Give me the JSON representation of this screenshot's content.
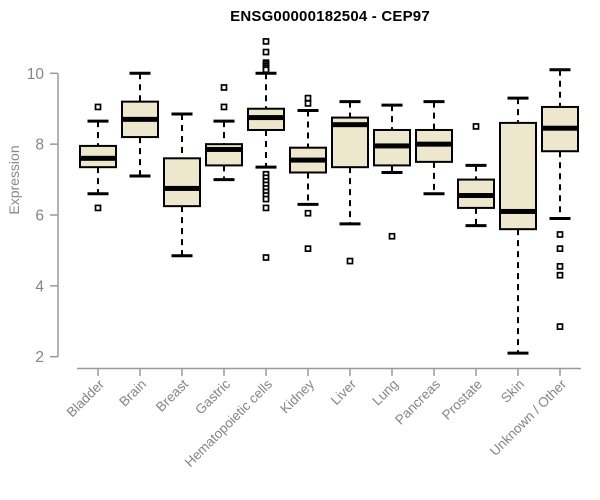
{
  "chart_data": {
    "type": "boxplot",
    "title": "ENSG00000182504 - CEP97",
    "ylabel": "Expression",
    "ylim": [
      2,
      10
    ],
    "yticks": [
      2,
      4,
      6,
      8,
      10
    ],
    "grid": false,
    "legend": "none",
    "categories": [
      "Bladder",
      "Brain",
      "Breast",
      "Gastric",
      "Hematopoietic cells",
      "Kidney",
      "Liver",
      "Lung",
      "Pancreas",
      "Prostate",
      "Skin",
      "Unknown / Other"
    ],
    "series": [
      {
        "category": "Bladder",
        "low": 6.6,
        "q1": 7.35,
        "median": 7.6,
        "q3": 7.95,
        "high": 8.65,
        "outliers": [
          9.05,
          6.2
        ]
      },
      {
        "category": "Brain",
        "low": 7.1,
        "q1": 8.2,
        "median": 8.7,
        "q3": 9.2,
        "high": 10.0,
        "outliers": []
      },
      {
        "category": "Breast",
        "low": 4.85,
        "q1": 6.25,
        "median": 6.75,
        "q3": 7.6,
        "high": 8.85,
        "outliers": []
      },
      {
        "category": "Gastric",
        "low": 7.0,
        "q1": 7.4,
        "median": 7.85,
        "q3": 8.0,
        "high": 8.65,
        "outliers": [
          9.6,
          9.05
        ]
      },
      {
        "category": "Hematopoietic cells",
        "low": 7.35,
        "q1": 8.4,
        "median": 8.75,
        "q3": 9.0,
        "high": 10.0,
        "outliers": [
          10.9,
          10.6,
          10.3,
          10.25,
          10.2,
          10.15,
          10.1,
          7.15,
          7.05,
          6.95,
          6.85,
          6.75,
          6.65,
          6.55,
          6.45,
          6.2,
          4.8
        ]
      },
      {
        "category": "Kidney",
        "low": 6.3,
        "q1": 7.2,
        "median": 7.55,
        "q3": 7.9,
        "high": 8.95,
        "outliers": [
          9.3,
          9.15,
          6.05,
          5.05
        ]
      },
      {
        "category": "Liver",
        "low": 5.75,
        "q1": 7.35,
        "median": 8.55,
        "q3": 8.75,
        "high": 9.2,
        "outliers": [
          4.7
        ]
      },
      {
        "category": "Lung",
        "low": 7.2,
        "q1": 7.4,
        "median": 7.95,
        "q3": 8.4,
        "high": 9.1,
        "outliers": [
          5.4
        ]
      },
      {
        "category": "Pancreas",
        "low": 6.6,
        "q1": 7.5,
        "median": 8.0,
        "q3": 8.4,
        "high": 9.2,
        "outliers": []
      },
      {
        "category": "Prostate",
        "low": 5.7,
        "q1": 6.2,
        "median": 6.55,
        "q3": 7.0,
        "high": 7.4,
        "outliers": [
          8.5
        ]
      },
      {
        "category": "Skin",
        "low": 2.1,
        "q1": 5.6,
        "median": 6.1,
        "q3": 8.6,
        "high": 9.3,
        "outliers": []
      },
      {
        "category": "Unknown / Other",
        "low": 5.9,
        "q1": 7.8,
        "median": 8.45,
        "q3": 9.05,
        "high": 10.1,
        "outliers": [
          5.45,
          5.05,
          4.55,
          4.3,
          2.85
        ]
      }
    ],
    "colors": {
      "box_fill": "#ede8cd",
      "box_stroke": "#000000",
      "median": "#000000",
      "whisker": "#000000",
      "outlier_fill": "#ffffff",
      "axis": "#9a9a9a",
      "tick_label": "#858585",
      "title": "#000000",
      "background": "#ffffff"
    }
  }
}
